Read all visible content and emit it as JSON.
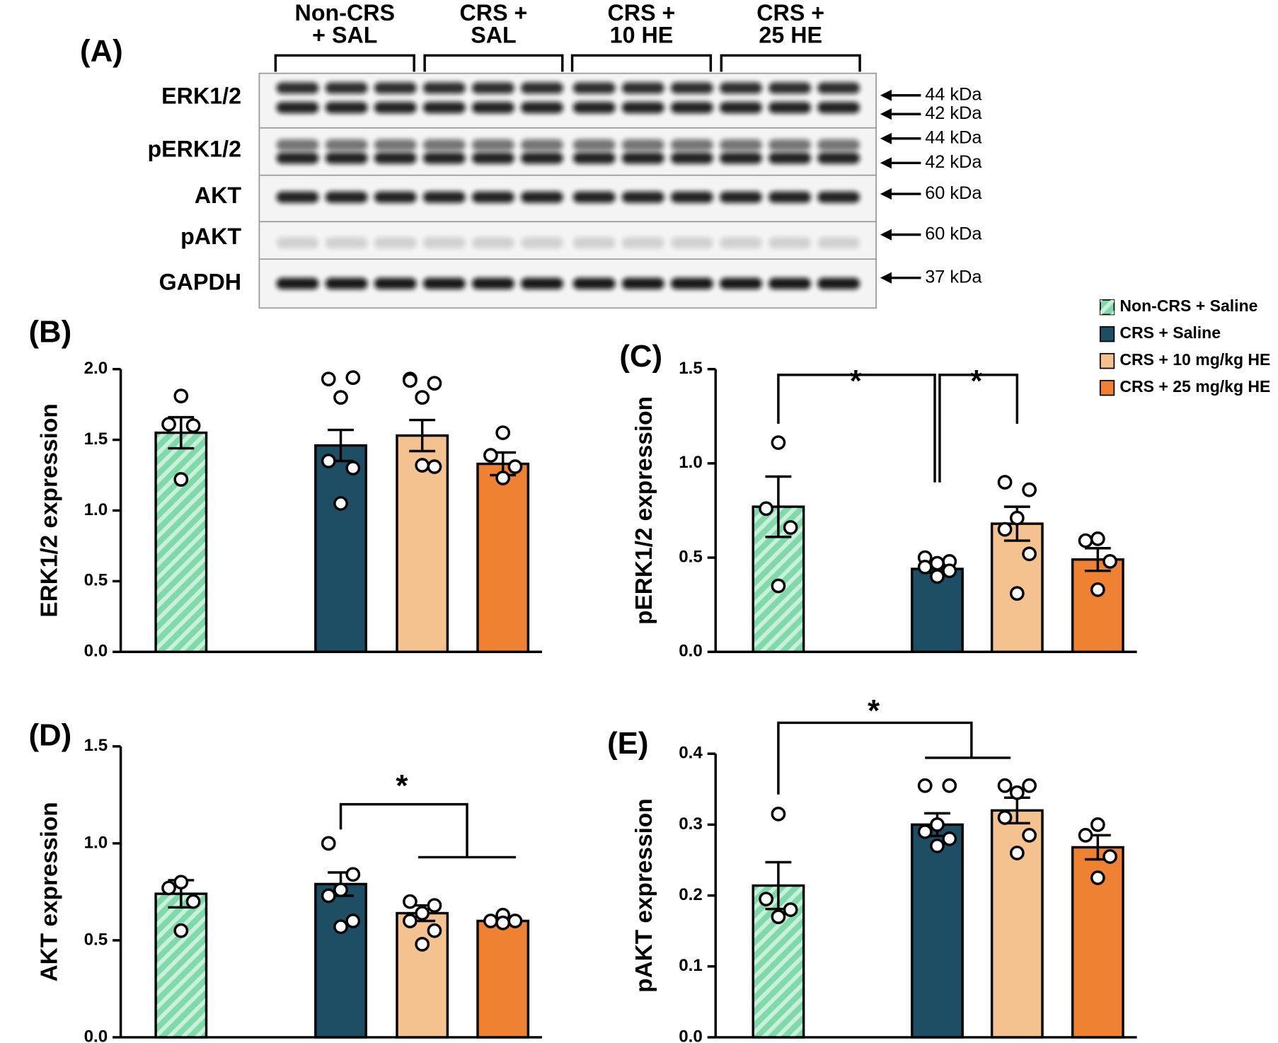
{
  "blot": {
    "label": "(A)",
    "groups": [
      [
        "Non-CRS",
        "+ SAL"
      ],
      [
        "CRS +",
        "SAL"
      ],
      [
        "CRS +",
        "10 HE"
      ],
      [
        "CRS +",
        "25 HE"
      ]
    ],
    "rows": [
      {
        "name": "ERK1/2",
        "markers": [
          "44 kDa",
          "42 kDa"
        ]
      },
      {
        "name": "pERK1/2",
        "markers": [
          "44 kDa",
          "42 kDa"
        ]
      },
      {
        "name": "AKT",
        "markers": [
          "60 kDa"
        ]
      },
      {
        "name": "pAKT",
        "markers": [
          "60 kDa"
        ]
      },
      {
        "name": "GAPDH",
        "markers": [
          "37 kDa"
        ]
      }
    ]
  },
  "legend": [
    {
      "name": "Non-CRS + Saline",
      "color": "#7fd9a8"
    },
    {
      "name": "CRS + Saline",
      "color": "#1d4e63"
    },
    {
      "name": "CRS + 10 mg/kg HE",
      "color": "#f4c28f"
    },
    {
      "name": "CRS + 25 mg/kg HE",
      "color": "#ee8232"
    }
  ],
  "chart_data": [
    {
      "type": "bar",
      "label": "(B)",
      "ylabel": "ERK1/2 expression",
      "ylim": [
        0,
        2
      ],
      "yticks": [
        {
          "value": 0,
          "label": "0.0"
        },
        {
          "value": 0.5,
          "label": "0.5"
        },
        {
          "value": 1,
          "label": "1.0"
        },
        {
          "value": 1.5,
          "label": "1.5"
        },
        {
          "value": 2,
          "label": "2.0"
        }
      ],
      "series": [
        {
          "values": [
            1.55
          ],
          "errors": [
            0.11
          ],
          "points": [
            1.81,
            1.61,
            1.6,
            1.22
          ]
        },
        {
          "values": [
            1.46
          ],
          "errors": [
            0.11
          ],
          "points": [
            1.93,
            1.94,
            1.8,
            1.35,
            1.3,
            1.05
          ]
        },
        {
          "values": [
            1.53
          ],
          "errors": [
            0.11
          ],
          "points": [
            1.93,
            1.9,
            1.8,
            1.92,
            1.31,
            1.32
          ]
        },
        {
          "values": [
            1.33
          ],
          "errors": [
            0.08
          ],
          "points": [
            1.55,
            1.39,
            1.31,
            1.23
          ]
        }
      ],
      "annotations": []
    },
    {
      "type": "bar",
      "label": "(C)",
      "ylabel": "pERK1/2 expression",
      "ylim": [
        0,
        1.5
      ],
      "yticks": [
        {
          "value": 0,
          "label": "0.0"
        },
        {
          "value": 0.5,
          "label": "0.5"
        },
        {
          "value": 1,
          "label": "1.0"
        },
        {
          "value": 1.5,
          "label": "1.5"
        }
      ],
      "series": [
        {
          "values": [
            0.77
          ],
          "errors": [
            0.16
          ],
          "points": [
            1.11,
            0.76,
            0.66,
            0.35
          ]
        },
        {
          "values": [
            0.44
          ],
          "errors": [
            0.02
          ],
          "points": [
            0.5,
            0.48,
            0.47,
            0.45,
            0.43,
            0.4
          ]
        },
        {
          "values": [
            0.68
          ],
          "errors": [
            0.09
          ],
          "points": [
            0.9,
            0.86,
            0.71,
            0.65,
            0.52,
            0.31
          ]
        },
        {
          "values": [
            0.49
          ],
          "errors": [
            0.06
          ],
          "points": [
            0.6,
            0.59,
            0.48,
            0.33
          ]
        }
      ],
      "annotations": [
        "*",
        "*"
      ]
    },
    {
      "type": "bar",
      "label": "(D)",
      "ylabel": "AKT expression",
      "ylim": [
        0,
        1.5
      ],
      "yticks": [
        {
          "value": 0,
          "label": "0.0"
        },
        {
          "value": 0.5,
          "label": "0.5"
        },
        {
          "value": 1,
          "label": "1.0"
        },
        {
          "value": 1.5,
          "label": "1.5"
        }
      ],
      "series": [
        {
          "values": [
            0.74
          ],
          "errors": [
            0.07
          ],
          "points": [
            0.8,
            0.77,
            0.7,
            0.55
          ]
        },
        {
          "values": [
            0.79
          ],
          "errors": [
            0.06
          ],
          "points": [
            1.0,
            0.84,
            0.76,
            0.73,
            0.6,
            0.57
          ]
        },
        {
          "values": [
            0.64
          ],
          "errors": [
            0.04
          ],
          "points": [
            0.7,
            0.68,
            0.64,
            0.6,
            0.55,
            0.48
          ]
        },
        {
          "values": [
            0.6
          ],
          "errors": [
            0.01
          ],
          "points": [
            0.63,
            0.6,
            0.6,
            0.59
          ]
        }
      ],
      "annotations": [
        "*"
      ]
    },
    {
      "type": "bar",
      "label": "(E)",
      "ylabel": "pAKT expression",
      "ylim": [
        0,
        0.4
      ],
      "yticks": [
        {
          "value": 0,
          "label": "0.0"
        },
        0.1,
        0.2,
        0.3,
        0.4
      ],
      "series": [
        {
          "values": [
            0.214
          ],
          "errors": [
            0.033
          ],
          "points": [
            0.315,
            0.195,
            0.18,
            0.17
          ]
        },
        {
          "values": [
            0.3
          ],
          "errors": [
            0.016
          ],
          "points": [
            0.355,
            0.355,
            0.3,
            0.29,
            0.28,
            0.27
          ]
        },
        {
          "values": [
            0.32
          ],
          "errors": [
            0.018
          ],
          "points": [
            0.355,
            0.355,
            0.345,
            0.31,
            0.285,
            0.26
          ]
        },
        {
          "values": [
            0.268
          ],
          "errors": [
            0.017
          ],
          "points": [
            0.3,
            0.285,
            0.255,
            0.225
          ]
        }
      ],
      "annotations": [
        "*"
      ]
    }
  ]
}
